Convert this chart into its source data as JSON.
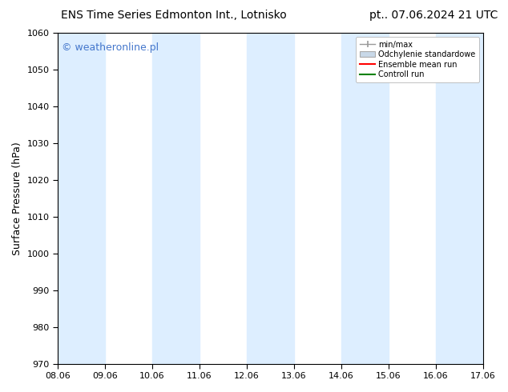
{
  "title_left": "ENS Time Series Edmonton Int., Lotnisko",
  "title_right": "pt.. 07.06.2024 21 UTC",
  "ylabel": "Surface Pressure (hPa)",
  "ylim": [
    970,
    1060
  ],
  "yticks": [
    970,
    980,
    990,
    1000,
    1010,
    1020,
    1030,
    1040,
    1050,
    1060
  ],
  "xtick_labels": [
    "08.06",
    "09.06",
    "10.06",
    "11.06",
    "12.06",
    "13.06",
    "14.06",
    "15.06",
    "16.06",
    "17.06"
  ],
  "background_color": "#ffffff",
  "shaded_band_color": "#ddeeff",
  "shaded_intervals": [
    [
      0.0,
      1.0
    ],
    [
      2.0,
      3.0
    ],
    [
      4.0,
      5.0
    ],
    [
      6.0,
      7.0
    ],
    [
      8.0,
      9.0
    ]
  ],
  "watermark_text": "© weatheronline.pl",
  "watermark_color": "#4477cc",
  "legend_entries": [
    {
      "label": "min/max",
      "color": "#aaaaaa",
      "style": "errorbar"
    },
    {
      "label": "Odchylenie standardowe",
      "color": "#c8d8e8",
      "style": "bar"
    },
    {
      "label": "Ensemble mean run",
      "color": "red",
      "style": "line"
    },
    {
      "label": "Controll run",
      "color": "green",
      "style": "line"
    }
  ],
  "title_fontsize": 10,
  "axis_label_fontsize": 9,
  "tick_fontsize": 8,
  "legend_fontsize": 7,
  "watermark_fontsize": 9
}
